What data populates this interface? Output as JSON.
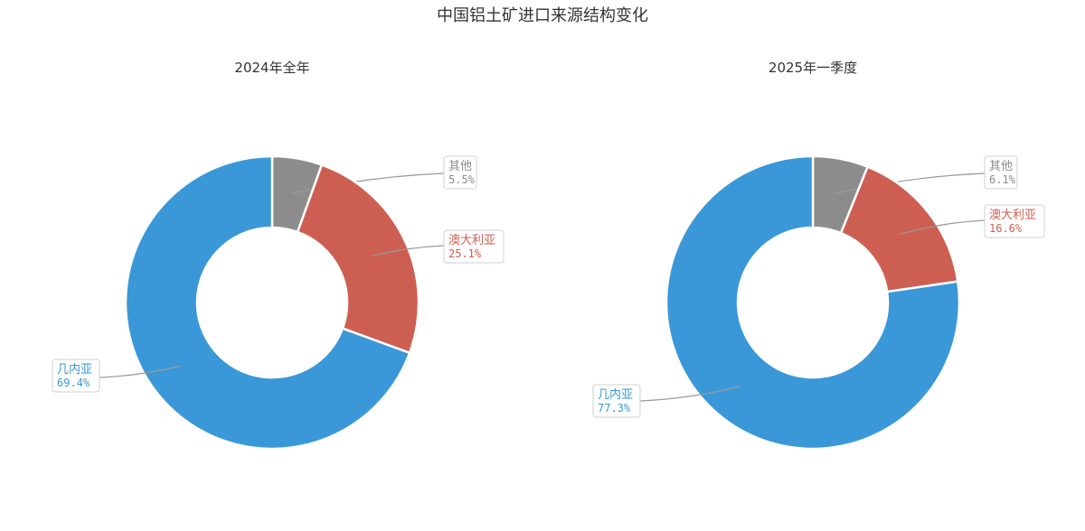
{
  "title": "中国铝土矿进口来源结构变化",
  "chart_data": [
    {
      "type": "pie",
      "subtype": "donut",
      "title": "2024年全年",
      "categories": [
        "其他",
        "澳大利亚",
        "几内亚"
      ],
      "values": [
        5.5,
        25.1,
        69.4
      ],
      "value_labels": [
        "5.5%",
        "25.1%",
        "69.4%"
      ],
      "unit": "%",
      "colors": [
        "#8c8c8c",
        "#cd5f52",
        "#3a98d8"
      ],
      "legend": "none",
      "label_position": "outside with leader lines"
    },
    {
      "type": "pie",
      "subtype": "donut",
      "title": "2025年一季度",
      "categories": [
        "其他",
        "澳大利亚",
        "几内亚"
      ],
      "values": [
        6.1,
        16.6,
        77.3
      ],
      "value_labels": [
        "6.1%",
        "16.6%",
        "77.3%"
      ],
      "unit": "%",
      "colors": [
        "#8c8c8c",
        "#cd5f52",
        "#3a98d8"
      ],
      "legend": "none",
      "label_position": "outside with leader lines"
    }
  ]
}
